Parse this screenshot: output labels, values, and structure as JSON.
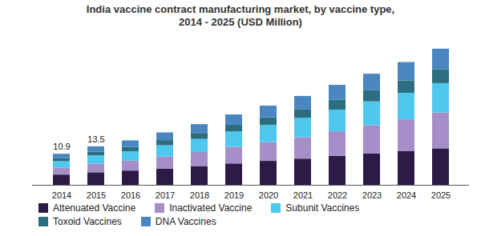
{
  "chart_data": {
    "type": "bar",
    "title": "India vaccine contract manufacturing market, by vaccine type,\n2014 - 2025 (USD Million)",
    "stacked": true,
    "tick_labels": "x",
    "categories": [
      "2014",
      "2015",
      "2016",
      "2017",
      "2018",
      "2019",
      "2020",
      "2021",
      "2022",
      "2023",
      "2024",
      "2025"
    ],
    "ylim": [
      0,
      50
    ],
    "series": [
      {
        "name": "Attenuated Vaccine",
        "color": "#2e1a47",
        "values": [
          3.6,
          4.4,
          5.0,
          5.7,
          6.6,
          7.5,
          8.4,
          9.2,
          10.2,
          11.0,
          11.8,
          12.8
        ]
      },
      {
        "name": "Inactivated Vaccine",
        "color": "#a68fc9",
        "values": [
          2.4,
          3.0,
          3.5,
          4.2,
          4.9,
          5.8,
          6.6,
          7.5,
          8.6,
          9.9,
          11.2,
          12.6
        ]
      },
      {
        "name": "Subunit Vaccines",
        "color": "#4fc8f0",
        "values": [
          2.3,
          2.9,
          3.3,
          4.0,
          4.6,
          5.4,
          6.0,
          6.8,
          7.6,
          8.4,
          9.3,
          10.3
        ]
      },
      {
        "name": "Toxoid Vaccines",
        "color": "#2c6e7f",
        "values": [
          1.1,
          1.3,
          1.5,
          1.8,
          2.1,
          2.4,
          2.7,
          3.1,
          3.5,
          3.9,
          4.3,
          4.8
        ]
      },
      {
        "name": "DNA Vaccines",
        "color": "#4a86c0",
        "values": [
          1.5,
          1.9,
          2.3,
          2.7,
          3.1,
          3.6,
          4.1,
          4.6,
          5.2,
          5.8,
          6.5,
          7.3
        ]
      }
    ],
    "annotations": [
      {
        "x": "2014",
        "value": 10.9
      },
      {
        "x": "2015",
        "value": 13.5
      }
    ]
  }
}
